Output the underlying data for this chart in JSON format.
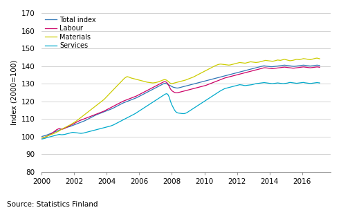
{
  "ylabel": "Index (2000=100)",
  "source": "Source: Statistics Finland",
  "ylim": [
    80,
    170
  ],
  "yticks": [
    80,
    90,
    100,
    110,
    120,
    130,
    140,
    150,
    160,
    170
  ],
  "xlim": [
    2000.0,
    2017.75
  ],
  "xticks": [
    2000,
    2002,
    2004,
    2006,
    2008,
    2010,
    2012,
    2014,
    2016
  ],
  "colors": {
    "total": "#2E75B6",
    "labour": "#CC0066",
    "materials": "#CCCC00",
    "services": "#00AACC"
  },
  "legend": [
    "Total index",
    "Labour",
    "Materials",
    "Services"
  ],
  "grid_color": "#CCCCCC",
  "background": "#FFFFFF",
  "total_index": [
    100.0,
    100.2,
    100.4,
    100.6,
    100.9,
    101.2,
    101.5,
    101.8,
    102.1,
    102.4,
    102.7,
    103.0,
    103.3,
    103.6,
    104.0,
    104.3,
    104.5,
    104.8,
    105.1,
    105.3,
    105.5,
    105.7,
    106.0,
    106.3,
    106.6,
    106.9,
    107.2,
    107.5,
    107.8,
    108.1,
    108.4,
    108.7,
    109.0,
    109.4,
    109.8,
    110.2,
    110.6,
    111.0,
    111.4,
    111.8,
    112.2,
    112.5,
    112.8,
    113.1,
    113.4,
    113.7,
    114.0,
    114.3,
    114.6,
    114.9,
    115.2,
    115.5,
    115.8,
    116.2,
    116.6,
    117.0,
    117.4,
    117.8,
    118.2,
    118.6,
    119.0,
    119.3,
    119.6,
    119.9,
    120.2,
    120.5,
    120.8,
    121.1,
    121.4,
    121.7,
    122.0,
    122.4,
    122.8,
    123.2,
    123.6,
    124.0,
    124.4,
    124.8,
    125.2,
    125.6,
    126.0,
    126.4,
    126.8,
    127.2,
    127.6,
    128.0,
    128.4,
    128.8,
    129.2,
    129.6,
    130.0,
    130.2,
    130.0,
    129.6,
    129.2,
    128.8,
    128.4,
    128.0,
    127.8,
    127.6,
    127.5,
    127.6,
    127.8,
    128.0,
    128.2,
    128.4,
    128.6,
    128.8,
    129.0,
    129.2,
    129.4,
    129.6,
    129.8,
    130.0,
    130.2,
    130.4,
    130.6,
    130.8,
    131.0,
    131.2,
    131.4,
    131.6,
    131.8,
    132.0,
    132.2,
    132.4,
    132.6,
    132.8,
    133.0,
    133.2,
    133.4,
    133.6,
    133.8,
    134.0,
    134.2,
    134.4,
    134.6,
    134.8,
    135.0,
    135.2,
    135.4,
    135.6,
    135.8,
    136.0,
    136.2,
    136.4,
    136.6,
    136.8,
    137.0,
    137.2,
    137.4,
    137.6,
    137.8,
    138.0,
    138.2,
    138.4,
    138.6,
    138.8,
    139.0,
    139.2,
    139.4,
    139.6,
    139.8,
    140.0,
    140.1,
    140.0,
    139.9,
    139.8,
    139.7,
    139.6,
    139.6,
    139.7,
    139.8,
    139.9,
    140.0,
    140.1,
    140.2,
    140.3,
    140.4,
    140.5,
    140.4,
    140.3,
    140.2,
    140.1,
    140.0,
    139.9,
    139.8,
    139.9,
    140.0,
    140.1,
    140.2,
    140.3,
    140.4,
    140.5,
    140.4,
    140.3,
    140.2,
    140.1,
    140.0,
    140.1,
    140.2,
    140.3,
    140.4,
    140.5,
    140.4,
    140.3
  ],
  "labour": [
    99.0,
    99.2,
    99.5,
    99.8,
    100.2,
    100.6,
    101.0,
    101.5,
    102.0,
    102.6,
    103.2,
    103.8,
    104.2,
    104.5,
    104.3,
    104.1,
    104.3,
    104.6,
    105.0,
    105.4,
    105.8,
    106.2,
    106.6,
    107.0,
    107.4,
    107.8,
    108.2,
    108.6,
    109.0,
    109.3,
    109.6,
    109.9,
    110.2,
    110.5,
    110.8,
    111.1,
    111.4,
    111.7,
    112.0,
    112.3,
    112.6,
    112.9,
    113.2,
    113.5,
    113.8,
    114.1,
    114.4,
    114.8,
    115.2,
    115.6,
    116.0,
    116.4,
    116.8,
    117.2,
    117.6,
    118.0,
    118.4,
    118.8,
    119.2,
    119.6,
    120.0,
    120.3,
    120.6,
    120.9,
    121.2,
    121.5,
    121.8,
    122.1,
    122.4,
    122.7,
    123.0,
    123.4,
    123.8,
    124.2,
    124.6,
    125.0,
    125.4,
    125.8,
    126.2,
    126.6,
    127.0,
    127.4,
    127.8,
    128.2,
    128.6,
    129.0,
    129.4,
    129.8,
    130.2,
    130.6,
    131.0,
    131.1,
    130.8,
    130.0,
    128.5,
    127.0,
    126.0,
    125.5,
    125.0,
    124.8,
    124.8,
    125.0,
    125.2,
    125.4,
    125.6,
    125.8,
    126.0,
    126.2,
    126.4,
    126.6,
    126.8,
    127.0,
    127.2,
    127.4,
    127.6,
    127.8,
    128.0,
    128.2,
    128.4,
    128.6,
    128.8,
    129.0,
    129.3,
    129.6,
    129.9,
    130.2,
    130.5,
    130.8,
    131.1,
    131.4,
    131.7,
    132.0,
    132.3,
    132.6,
    132.9,
    133.2,
    133.4,
    133.6,
    133.8,
    134.0,
    134.2,
    134.4,
    134.6,
    134.8,
    135.0,
    135.2,
    135.4,
    135.6,
    135.8,
    136.0,
    136.2,
    136.4,
    136.6,
    136.8,
    137.0,
    137.2,
    137.4,
    137.6,
    137.8,
    138.0,
    138.2,
    138.4,
    138.6,
    138.8,
    139.0,
    139.0,
    138.9,
    138.8,
    138.7,
    138.6,
    138.5,
    138.6,
    138.7,
    138.8,
    138.9,
    139.0,
    139.1,
    139.2,
    139.3,
    139.4,
    139.3,
    139.2,
    139.1,
    139.0,
    138.9,
    138.8,
    138.8,
    138.9,
    139.0,
    139.1,
    139.2,
    139.3,
    139.4,
    139.5,
    139.4,
    139.3,
    139.2,
    139.1,
    139.0,
    139.1,
    139.2,
    139.3,
    139.4,
    139.5,
    139.4,
    139.3
  ],
  "materials": [
    99.0,
    99.3,
    99.6,
    99.9,
    100.2,
    100.5,
    100.8,
    101.1,
    101.4,
    101.7,
    102.0,
    102.4,
    102.8,
    103.2,
    103.7,
    104.2,
    104.6,
    105.0,
    105.4,
    105.8,
    106.2,
    106.6,
    107.0,
    107.5,
    108.0,
    108.5,
    109.0,
    109.6,
    110.2,
    110.8,
    111.4,
    112.0,
    112.6,
    113.2,
    113.8,
    114.4,
    115.0,
    115.6,
    116.2,
    116.8,
    117.4,
    118.0,
    118.6,
    119.2,
    119.8,
    120.4,
    121.0,
    121.8,
    122.6,
    123.4,
    124.2,
    125.0,
    125.8,
    126.6,
    127.4,
    128.2,
    129.0,
    129.8,
    130.6,
    131.4,
    132.2,
    133.0,
    133.5,
    134.0,
    133.8,
    133.5,
    133.2,
    133.0,
    132.8,
    132.6,
    132.4,
    132.2,
    132.0,
    131.8,
    131.6,
    131.4,
    131.2,
    131.0,
    130.8,
    130.7,
    130.6,
    130.5,
    130.4,
    130.5,
    130.6,
    130.8,
    131.0,
    131.3,
    131.6,
    131.9,
    132.2,
    132.3,
    132.0,
    131.5,
    130.8,
    130.2,
    130.0,
    130.2,
    130.4,
    130.6,
    130.8,
    131.0,
    131.2,
    131.4,
    131.6,
    131.8,
    132.0,
    132.3,
    132.6,
    132.9,
    133.2,
    133.5,
    133.8,
    134.2,
    134.6,
    135.0,
    135.4,
    135.8,
    136.2,
    136.6,
    137.0,
    137.4,
    137.8,
    138.2,
    138.6,
    139.0,
    139.4,
    139.8,
    140.2,
    140.5,
    140.8,
    141.0,
    141.1,
    141.0,
    140.9,
    140.8,
    140.7,
    140.6,
    140.5,
    140.6,
    140.8,
    141.0,
    141.2,
    141.4,
    141.6,
    141.8,
    142.0,
    141.9,
    141.8,
    141.7,
    141.6,
    141.8,
    142.0,
    142.2,
    142.4,
    142.3,
    142.2,
    142.1,
    142.0,
    142.1,
    142.2,
    142.4,
    142.6,
    142.8,
    143.0,
    143.2,
    143.1,
    143.0,
    142.9,
    142.8,
    142.7,
    142.8,
    143.0,
    143.2,
    143.4,
    143.3,
    143.2,
    143.4,
    143.6,
    143.8,
    143.6,
    143.4,
    143.2,
    143.0,
    143.1,
    143.2,
    143.4,
    143.6,
    143.8,
    143.7,
    143.6,
    143.8,
    144.0,
    144.2,
    144.1,
    144.0,
    143.8,
    143.7,
    143.6,
    143.8,
    144.0,
    144.2,
    144.4,
    144.5,
    144.3,
    144.1
  ],
  "services": [
    98.5,
    98.7,
    98.9,
    99.1,
    99.4,
    99.6,
    99.8,
    100.0,
    100.2,
    100.4,
    100.6,
    100.8,
    101.0,
    101.2,
    101.1,
    101.0,
    101.1,
    101.2,
    101.4,
    101.6,
    101.8,
    102.0,
    102.2,
    102.4,
    102.3,
    102.2,
    102.1,
    102.0,
    101.9,
    101.8,
    101.9,
    102.0,
    102.2,
    102.4,
    102.6,
    102.8,
    103.0,
    103.2,
    103.4,
    103.6,
    103.8,
    104.0,
    104.2,
    104.4,
    104.6,
    104.8,
    105.0,
    105.2,
    105.4,
    105.6,
    105.8,
    106.0,
    106.3,
    106.6,
    107.0,
    107.4,
    107.8,
    108.2,
    108.6,
    109.0,
    109.4,
    109.8,
    110.2,
    110.6,
    111.0,
    111.4,
    111.8,
    112.2,
    112.6,
    113.0,
    113.5,
    114.0,
    114.5,
    115.0,
    115.5,
    116.0,
    116.5,
    117.0,
    117.5,
    118.0,
    118.5,
    119.0,
    119.5,
    120.0,
    120.5,
    121.0,
    121.5,
    122.0,
    122.5,
    123.0,
    123.5,
    124.0,
    124.3,
    124.0,
    122.5,
    120.0,
    118.0,
    116.5,
    115.0,
    114.0,
    113.5,
    113.3,
    113.2,
    113.1,
    113.0,
    113.0,
    113.2,
    113.5,
    114.0,
    114.5,
    115.0,
    115.5,
    116.0,
    116.5,
    117.0,
    117.5,
    118.0,
    118.5,
    119.0,
    119.5,
    120.0,
    120.5,
    121.0,
    121.5,
    122.0,
    122.5,
    123.0,
    123.5,
    124.0,
    124.5,
    125.0,
    125.5,
    126.0,
    126.4,
    126.8,
    127.2,
    127.4,
    127.6,
    127.8,
    128.0,
    128.2,
    128.4,
    128.6,
    128.8,
    129.0,
    129.2,
    129.4,
    129.3,
    129.2,
    129.0,
    128.9,
    129.0,
    129.1,
    129.2,
    129.3,
    129.4,
    129.6,
    129.8,
    130.0,
    130.1,
    130.2,
    130.3,
    130.4,
    130.5,
    130.6,
    130.5,
    130.4,
    130.3,
    130.2,
    130.1,
    130.0,
    130.1,
    130.2,
    130.3,
    130.4,
    130.3,
    130.2,
    130.1,
    130.0,
    130.1,
    130.2,
    130.3,
    130.5,
    130.7,
    130.6,
    130.5,
    130.4,
    130.3,
    130.2,
    130.3,
    130.4,
    130.5,
    130.6,
    130.7,
    130.5,
    130.4,
    130.3,
    130.2,
    130.1,
    130.2,
    130.3,
    130.4,
    130.5,
    130.6,
    130.5,
    130.4
  ]
}
